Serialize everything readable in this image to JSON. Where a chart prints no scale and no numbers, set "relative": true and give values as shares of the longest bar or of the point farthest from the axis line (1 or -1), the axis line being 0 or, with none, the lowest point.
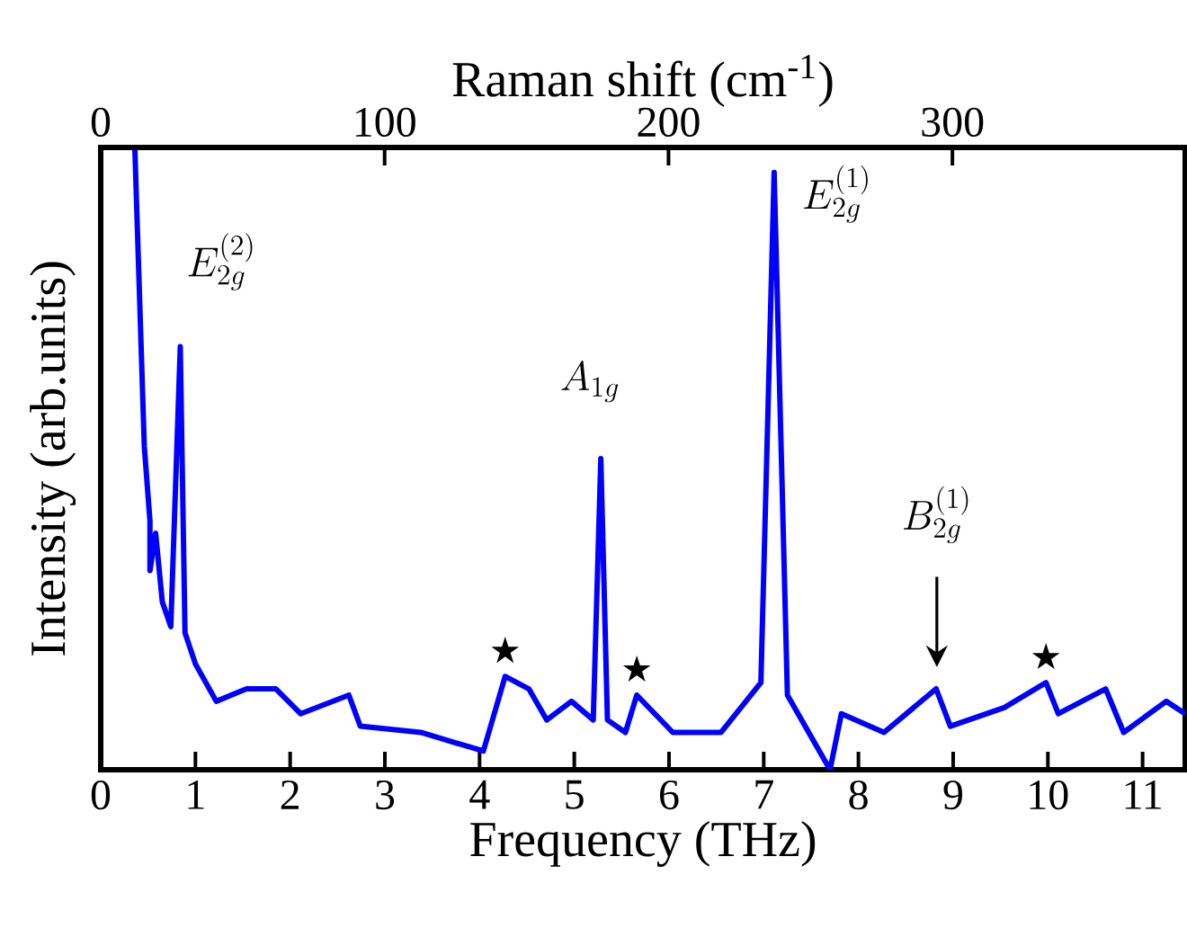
{
  "chart_data": {
    "type": "line",
    "relative": true,
    "xlabel": "Frequency (THz)",
    "ylabel": "Intensity (arb.units)",
    "x2label": "Raman shift (cm$^{-1}$)",
    "x": [
      0.36,
      0.46,
      0.52,
      0.52,
      0.58,
      0.65,
      0.74,
      0.84,
      0.89,
      1.0,
      1.22,
      1.54,
      1.85,
      2.11,
      2.62,
      2.74,
      3.38,
      4.04,
      4.27,
      4.52,
      4.71,
      4.97,
      5.2,
      5.28,
      5.35,
      5.54,
      5.66,
      6.04,
      6.55,
      6.97,
      7.11,
      7.25,
      7.7,
      7.82,
      8.27,
      8.82,
      8.97,
      9.54,
      9.98,
      10.11,
      10.61,
      10.8,
      11.25,
      11.45
    ],
    "series": [
      {
        "color": "#0000ff",
        "values": [
          1.0,
          0.52,
          0.4,
          0.32,
          0.38,
          0.27,
          0.23,
          0.68,
          0.22,
          0.17,
          0.11,
          0.13,
          0.13,
          0.09,
          0.12,
          0.07,
          0.06,
          0.03,
          0.15,
          0.13,
          0.08,
          0.11,
          0.08,
          0.5,
          0.08,
          0.06,
          0.12,
          0.06,
          0.06,
          0.14,
          0.96,
          0.12,
          0.0,
          0.09,
          0.06,
          0.13,
          0.07,
          0.1,
          0.14,
          0.09,
          0.13,
          0.06,
          0.11,
          0.09
        ]
      }
    ],
    "xlim": [
      0,
      11.45
    ],
    "xticks": [
      0,
      1,
      2,
      3,
      4,
      5,
      6,
      7,
      8,
      9,
      10,
      11
    ],
    "x2lim": [
      0,
      382
    ],
    "x2ticks": [
      0,
      100,
      200,
      300
    ],
    "annotations": [
      {
        "text": "E_{2g}^{(2)}",
        "x": 0.84,
        "y": 0.68
      },
      {
        "text": "A_{1g}",
        "x": 5.28,
        "y": 0.5
      },
      {
        "text": "E_{2g}^{(1)}",
        "x": 7.11,
        "y": 0.96
      },
      "B_{2g}^{(1)}",
      {
        "text": "★",
        "x": 4.27,
        "y": 0.15
      },
      {
        "text": "★",
        "x": 5.66,
        "y": 0.12
      },
      {
        "text": "★",
        "x": 9.98,
        "y": 0.14
      }
    ]
  }
}
